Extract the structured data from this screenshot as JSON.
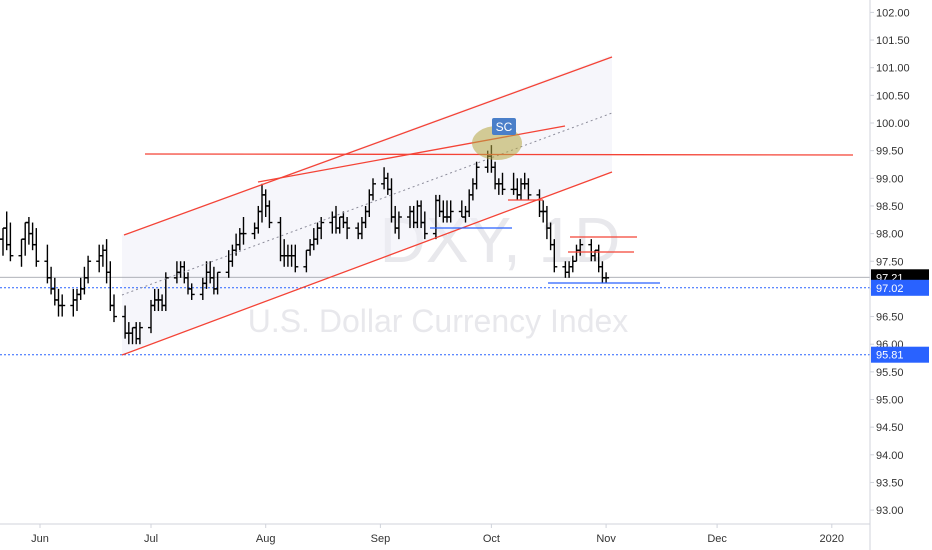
{
  "chart_data": {
    "type": "bar",
    "title": "",
    "watermark": {
      "symbol": "DXY, 1D",
      "name": "U.S. Dollar Currency Index"
    },
    "xlabel": "",
    "ylabel": "",
    "ylim": [
      92.6,
      102.2
    ],
    "grid": false,
    "x_ticks": [
      "Jun",
      "Jul",
      "Aug",
      "Sep",
      "Oct",
      "Nov",
      "Dec",
      "2020"
    ],
    "y_ticks": [
      "93.00",
      "93.50",
      "94.00",
      "94.50",
      "95.00",
      "95.50",
      "96.00",
      "96.50",
      "97.00",
      "97.50",
      "98.00",
      "98.50",
      "99.00",
      "99.50",
      "100.00",
      "100.50",
      "101.00",
      "101.50",
      "102.00"
    ],
    "series": [
      {
        "dates": [
          "2019-05-20",
          "2019-05-21",
          "2019-05-22",
          "2019-05-23",
          "2019-05-24",
          "2019-05-27",
          "2019-05-28",
          "2019-05-29",
          "2019-05-30",
          "2019-05-31",
          "2019-06-03",
          "2019-06-04",
          "2019-06-05",
          "2019-06-06",
          "2019-06-07",
          "2019-06-10",
          "2019-06-11",
          "2019-06-12",
          "2019-06-13",
          "2019-06-14",
          "2019-06-17",
          "2019-06-18",
          "2019-06-19",
          "2019-06-20",
          "2019-06-21",
          "2019-06-24",
          "2019-06-25",
          "2019-06-26",
          "2019-06-27",
          "2019-06-28",
          "2019-07-01",
          "2019-07-02",
          "2019-07-03",
          "2019-07-04",
          "2019-07-05",
          "2019-07-08",
          "2019-07-09",
          "2019-07-10",
          "2019-07-11",
          "2019-07-12",
          "2019-07-15",
          "2019-07-16",
          "2019-07-17",
          "2019-07-18",
          "2019-07-19",
          "2019-07-22",
          "2019-07-23",
          "2019-07-24",
          "2019-07-25",
          "2019-07-26",
          "2019-07-29",
          "2019-07-30",
          "2019-07-31",
          "2019-08-01",
          "2019-08-02",
          "2019-08-05",
          "2019-08-06",
          "2019-08-07",
          "2019-08-08",
          "2019-08-09",
          "2019-08-12",
          "2019-08-13",
          "2019-08-14",
          "2019-08-15",
          "2019-08-16",
          "2019-08-19",
          "2019-08-20",
          "2019-08-21",
          "2019-08-22",
          "2019-08-23",
          "2019-08-26",
          "2019-08-27",
          "2019-08-28",
          "2019-08-29",
          "2019-08-30",
          "2019-09-02",
          "2019-09-03",
          "2019-09-04",
          "2019-09-05",
          "2019-09-06",
          "2019-09-09",
          "2019-09-10",
          "2019-09-11",
          "2019-09-12",
          "2019-09-13",
          "2019-09-16",
          "2019-09-17",
          "2019-09-18",
          "2019-09-19",
          "2019-09-20",
          "2019-09-23",
          "2019-09-24",
          "2019-09-25",
          "2019-09-26",
          "2019-09-27",
          "2019-09-30",
          "2019-10-01",
          "2019-10-02",
          "2019-10-03",
          "2019-10-04",
          "2019-10-07",
          "2019-10-08",
          "2019-10-09",
          "2019-10-10",
          "2019-10-11",
          "2019-10-14",
          "2019-10-15",
          "2019-10-16",
          "2019-10-17",
          "2019-10-18",
          "2019-10-21",
          "2019-10-22",
          "2019-10-23",
          "2019-10-24",
          "2019-10-25",
          "2019-10-28",
          "2019-10-29",
          "2019-10-30",
          "2019-10-31",
          "2019-11-01"
        ],
        "open": [
          98.2,
          98.0,
          97.9,
          98.1,
          97.8,
          97.6,
          97.9,
          98.2,
          98.0,
          97.8,
          97.5,
          97.2,
          97.0,
          96.8,
          96.7,
          96.7,
          96.8,
          96.9,
          97.0,
          97.2,
          97.5,
          97.6,
          97.7,
          97.3,
          96.7,
          96.5,
          96.2,
          96.2,
          96.3,
          96.1,
          96.3,
          96.7,
          96.8,
          96.8,
          96.7,
          97.2,
          97.3,
          97.4,
          97.2,
          97.0,
          96.9,
          97.1,
          97.3,
          97.2,
          97.0,
          97.3,
          97.5,
          97.7,
          97.8,
          98.0,
          98.0,
          98.1,
          98.4,
          98.7,
          98.5,
          98.2,
          97.6,
          97.6,
          97.6,
          97.6,
          97.4,
          97.7,
          97.8,
          97.9,
          98.1,
          98.2,
          98.3,
          98.1,
          98.3,
          98.2,
          98.1,
          98.0,
          98.2,
          98.4,
          98.7,
          98.9,
          99.0,
          98.8,
          98.3,
          98.1,
          98.3,
          98.4,
          98.2,
          98.5,
          98.2,
          98.0,
          98.6,
          98.4,
          98.3,
          98.3,
          98.4,
          98.3,
          98.4,
          98.7,
          98.9,
          99.2,
          99.4,
          99.2,
          98.9,
          98.9,
          98.8,
          98.8,
          98.7,
          98.9,
          98.9,
          98.7,
          98.4,
          98.4,
          98.1,
          97.8,
          97.4,
          97.3,
          97.4,
          97.5,
          97.7,
          97.8,
          97.6,
          97.7,
          97.4,
          97.2
        ],
        "high": [
          98.5,
          98.3,
          98.1,
          98.4,
          98.2,
          97.9,
          98.2,
          98.3,
          98.2,
          98.1,
          97.8,
          97.4,
          97.2,
          97.0,
          96.9,
          97.0,
          97.0,
          97.2,
          97.4,
          97.6,
          97.8,
          97.8,
          97.9,
          97.5,
          96.9,
          96.7,
          96.4,
          96.3,
          96.4,
          96.4,
          96.8,
          97.0,
          97.0,
          96.9,
          97.3,
          97.5,
          97.5,
          97.5,
          97.3,
          97.1,
          97.2,
          97.5,
          97.5,
          97.4,
          97.3,
          97.7,
          97.8,
          98.0,
          98.1,
          98.3,
          98.2,
          98.5,
          98.9,
          98.8,
          98.6,
          98.3,
          97.9,
          97.8,
          97.8,
          97.8,
          97.7,
          97.9,
          98.1,
          98.2,
          98.3,
          98.4,
          98.5,
          98.3,
          98.4,
          98.3,
          98.2,
          98.3,
          98.5,
          98.8,
          99.0,
          99.2,
          99.1,
          99.0,
          98.5,
          98.4,
          98.5,
          98.5,
          98.6,
          98.6,
          98.4,
          98.7,
          98.7,
          98.6,
          98.6,
          98.6,
          98.6,
          98.5,
          98.8,
          99.0,
          99.3,
          99.5,
          99.6,
          99.3,
          99.0,
          99.1,
          99.1,
          99.0,
          99.0,
          99.1,
          99.0,
          98.8,
          98.6,
          98.5,
          98.2,
          97.9,
          97.5,
          97.5,
          97.6,
          97.8,
          97.9,
          97.9,
          97.7,
          97.8,
          97.5,
          97.3
        ],
        "low": [
          97.9,
          97.8,
          97.6,
          97.7,
          97.5,
          97.4,
          97.6,
          97.8,
          97.7,
          97.4,
          97.1,
          96.9,
          96.7,
          96.5,
          96.5,
          96.5,
          96.6,
          96.8,
          96.9,
          97.1,
          97.3,
          97.4,
          97.1,
          96.6,
          96.4,
          96.1,
          96.0,
          96.0,
          96.0,
          96.0,
          96.2,
          96.6,
          96.6,
          96.6,
          96.6,
          97.1,
          97.2,
          97.1,
          96.9,
          96.8,
          96.8,
          97.0,
          97.1,
          96.9,
          96.9,
          97.2,
          97.4,
          97.6,
          97.7,
          97.8,
          97.9,
          98.0,
          98.2,
          98.3,
          98.1,
          97.5,
          97.4,
          97.4,
          97.4,
          97.3,
          97.3,
          97.6,
          97.7,
          97.8,
          97.9,
          98.0,
          98.0,
          98.0,
          98.1,
          97.9,
          97.9,
          97.9,
          98.1,
          98.3,
          98.6,
          98.8,
          98.7,
          98.2,
          98.0,
          97.9,
          98.1,
          98.1,
          98.1,
          98.1,
          97.9,
          97.9,
          98.3,
          98.2,
          98.2,
          98.2,
          98.3,
          98.2,
          98.3,
          98.6,
          98.8,
          99.1,
          99.1,
          98.8,
          98.7,
          98.7,
          98.7,
          98.6,
          98.6,
          98.8,
          98.6,
          98.3,
          98.2,
          97.9,
          97.7,
          97.3,
          97.2,
          97.2,
          97.3,
          97.5,
          97.6,
          97.5,
          97.5,
          97.3,
          97.1,
          97.1
        ],
        "close": [
          98.0,
          97.9,
          98.1,
          97.8,
          97.6,
          97.9,
          98.2,
          98.0,
          97.8,
          97.5,
          97.2,
          97.0,
          96.8,
          96.7,
          96.7,
          96.8,
          96.9,
          97.0,
          97.2,
          97.5,
          97.6,
          97.7,
          97.3,
          96.7,
          96.5,
          96.2,
          96.2,
          96.3,
          96.1,
          96.3,
          96.7,
          96.8,
          96.8,
          96.7,
          97.2,
          97.3,
          97.4,
          97.2,
          97.0,
          96.9,
          97.1,
          97.3,
          97.2,
          97.0,
          97.3,
          97.5,
          97.7,
          97.8,
          98.0,
          98.0,
          98.1,
          98.4,
          98.7,
          98.5,
          98.2,
          97.6,
          97.6,
          97.6,
          97.6,
          97.4,
          97.7,
          97.8,
          97.9,
          98.1,
          98.2,
          98.3,
          98.1,
          98.3,
          98.2,
          98.1,
          98.0,
          98.2,
          98.4,
          98.7,
          98.9,
          99.0,
          98.8,
          98.3,
          98.1,
          98.3,
          98.4,
          98.2,
          98.5,
          98.2,
          98.0,
          98.6,
          98.4,
          98.3,
          98.3,
          98.4,
          98.3,
          98.4,
          98.7,
          98.9,
          99.2,
          99.4,
          99.2,
          98.9,
          98.9,
          98.8,
          98.8,
          98.7,
          98.9,
          98.9,
          98.7,
          98.4,
          98.4,
          98.1,
          97.8,
          97.4,
          97.3,
          97.4,
          97.5,
          97.7,
          97.8,
          97.6,
          97.7,
          97.4,
          97.2,
          97.2
        ]
      }
    ],
    "last_price": "97.21",
    "price_labels": [
      {
        "text": "97.02",
        "value": 97.02
      },
      {
        "text": "95.81",
        "value": 95.81
      }
    ],
    "annotation_text": "SC",
    "colors": {
      "bars": "#000000",
      "trend_lines": "#f44336",
      "support_lines": "#2962ff",
      "channel_fill": "#eeeef8",
      "price_badge": "#2962ff",
      "last_price_badge": "#000000",
      "annotation_badge": "#4a7fc9",
      "highlight": "#b5a642"
    }
  }
}
